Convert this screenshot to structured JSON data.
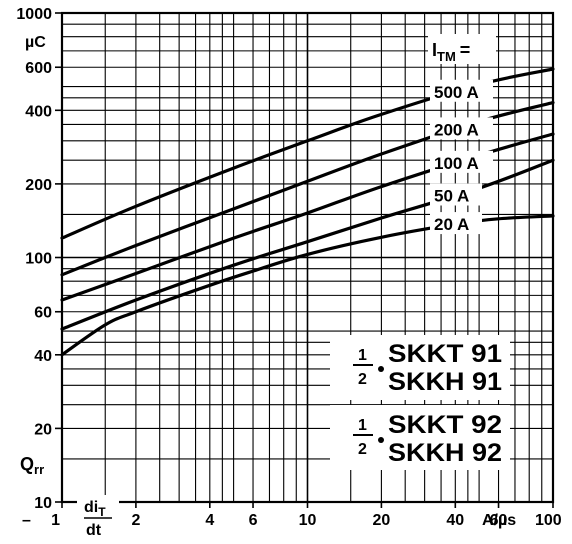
{
  "chart_data": {
    "type": "line",
    "x_scale": "log",
    "y_scale": "log",
    "xlim": [
      1,
      100
    ],
    "ylim": [
      10,
      1000
    ],
    "grid": true,
    "x_ticks": [
      {
        "value": 1,
        "label": "1"
      },
      {
        "value": 2,
        "label": "2"
      },
      {
        "value": 4,
        "label": "4"
      },
      {
        "value": 6,
        "label": "6"
      },
      {
        "value": 10,
        "label": "10"
      },
      {
        "value": 20,
        "label": "20"
      },
      {
        "value": 40,
        "label": "40"
      },
      {
        "value": 60,
        "label": "60"
      },
      {
        "value": 100,
        "label": "100"
      }
    ],
    "y_ticks": [
      {
        "value": 10,
        "label": "10"
      },
      {
        "value": 20,
        "label": "20"
      },
      {
        "value": 40,
        "label": "40"
      },
      {
        "value": 60,
        "label": "60"
      },
      {
        "value": 100,
        "label": "100"
      },
      {
        "value": 200,
        "label": "200"
      },
      {
        "value": 400,
        "label": "400"
      },
      {
        "value": 600,
        "label": "600"
      },
      {
        "value": 1000,
        "label": "1000"
      }
    ],
    "y_unit": "µC",
    "y_symbol": "Q",
    "y_symbol_sub": "rr",
    "x_unit": "A/µs",
    "x_symbol_num": "di",
    "x_symbol_num_sub": "T",
    "x_symbol_den": "dt",
    "legend_title": "I",
    "legend_title_sub": "TM",
    "legend_title_suffix": "=",
    "series": [
      {
        "name": "500 A",
        "x": [
          1,
          2,
          5,
          10,
          20,
          50,
          100
        ],
        "y": [
          120,
          162,
          232,
          300,
          385,
          510,
          590
        ]
      },
      {
        "name": "200 A",
        "x": [
          1,
          2,
          5,
          10,
          20,
          50,
          100
        ],
        "y": [
          85,
          112,
          158,
          205,
          265,
          360,
          430
        ]
      },
      {
        "name": "100 A",
        "x": [
          1,
          2,
          5,
          10,
          20,
          50,
          100
        ],
        "y": [
          67,
          86,
          120,
          152,
          195,
          262,
          320
        ]
      },
      {
        "name": "50 A",
        "x": [
          1,
          2,
          5,
          10,
          20,
          50,
          100
        ],
        "y": [
          51,
          67,
          93,
          116,
          145,
          192,
          250
        ]
      },
      {
        "name": "20 A",
        "x": [
          1,
          1.5,
          2,
          4,
          6,
          10,
          20,
          40,
          60,
          100
        ],
        "y": [
          40,
          53,
          60,
          77,
          88,
          103,
          121,
          137,
          144,
          148
        ]
      }
    ],
    "annotations": [
      {
        "frac_num": "1",
        "frac_den": "2",
        "line1": "SKKT 91",
        "line2": "SKKH 91"
      },
      {
        "frac_num": "1",
        "frac_den": "2",
        "line1": "SKKT 92",
        "line2": "SKKH 92"
      }
    ]
  }
}
